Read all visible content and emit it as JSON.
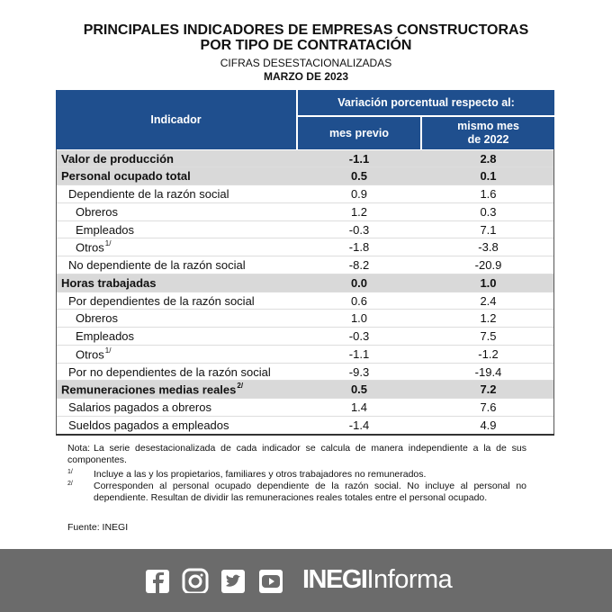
{
  "header": {
    "title_lines": [
      "PRINCIPALES INDICADORES DE EMPRESAS CONSTRUCTORAS",
      "POR TIPO DE CONTRATACIÓN"
    ],
    "subtitle": "CIFRAS DESESTACIONALIZADAS",
    "date": "MARZO DE 2023"
  },
  "table": {
    "columns": {
      "indicator": "Indicador",
      "group": "Variación porcentual respecto al:",
      "prev": "mes previo",
      "same": "mismo mes\nde 2022"
    },
    "rows": [
      {
        "label": "Valor de producción",
        "level": 0,
        "prev": "-1.1",
        "same": "2.8"
      },
      {
        "label": "Personal ocupado total",
        "level": 0,
        "prev": "0.5",
        "same": "0.1"
      },
      {
        "label": "Dependiente de la razón social",
        "level": 1,
        "prev": "0.9",
        "same": "1.6"
      },
      {
        "label": "Obreros",
        "level": 2,
        "prev": "1.2",
        "same": "0.3"
      },
      {
        "label": "Empleados",
        "level": 2,
        "prev": "-0.3",
        "same": "7.1"
      },
      {
        "label": "Otros",
        "sup": "1/",
        "level": 2,
        "prev": "-1.8",
        "same": "-3.8"
      },
      {
        "label": "No dependiente de la razón social",
        "level": 1,
        "prev": "-8.2",
        "same": "-20.9"
      },
      {
        "label": "Horas trabajadas",
        "level": 0,
        "prev": "0.0",
        "same": "1.0"
      },
      {
        "label": "Por dependientes de la razón social",
        "level": 1,
        "prev": "0.6",
        "same": "2.4"
      },
      {
        "label": "Obreros",
        "level": 2,
        "prev": "1.0",
        "same": "1.2"
      },
      {
        "label": "Empleados",
        "level": 2,
        "prev": "-0.3",
        "same": "7.5"
      },
      {
        "label": "Otros",
        "sup": "1/",
        "level": 2,
        "prev": "-1.1",
        "same": "-1.2"
      },
      {
        "label": "Por no dependientes de la razón social",
        "level": 1,
        "prev": "-9.3",
        "same": "-19.4"
      },
      {
        "label": "Remuneraciones medias reales",
        "sup": "2/",
        "level": 0,
        "prev": "0.5",
        "same": "7.2"
      },
      {
        "label": "Salarios pagados a obreros",
        "level": 1,
        "prev": "1.4",
        "same": "7.6"
      },
      {
        "label": "Sueldos pagados a empleados",
        "level": 1,
        "prev": "-1.4",
        "same": "4.9"
      }
    ]
  },
  "notes": [
    {
      "mark": "Nota:",
      "text": "La serie desestacionalizada de cada indicador se calcula de manera independiente a la de sus componentes."
    },
    {
      "mark": "1/",
      "text": "Incluye a las y los propietarios, familiares y otros trabajadores no remunerados."
    },
    {
      "mark": "2/",
      "text": "Corresponden al personal ocupado dependiente de la razón social. No incluye al personal no dependiente. Resultan de dividir las remuneraciones reales totales entre el personal ocupado."
    }
  ],
  "source": "Fuente: INEGI",
  "footer": {
    "brand_bold": "INEGI",
    "brand": "Informa"
  }
}
